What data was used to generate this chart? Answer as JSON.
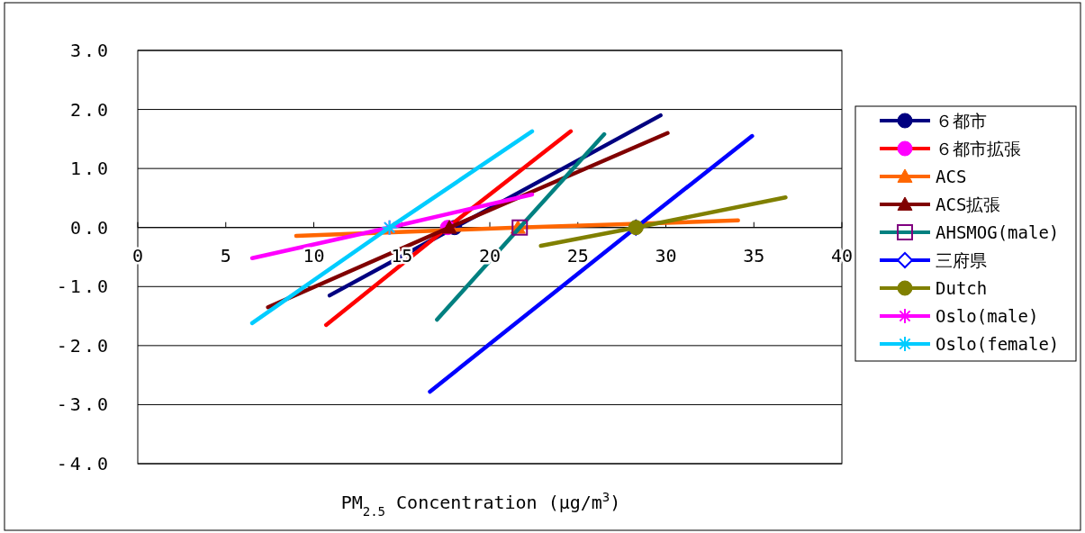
{
  "chart_data": {
    "type": "line",
    "xlabel": "PM$_{2.5}$ Concentration (µg/m$^{3}$)",
    "xlim": [
      0,
      40
    ],
    "xticks": [
      0,
      5,
      10,
      15,
      20,
      25,
      30,
      35,
      40
    ],
    "ylim": [
      -4,
      3
    ],
    "yticks": [
      {
        "value": -4,
        "label": "-4.0"
      },
      {
        "value": -3,
        "label": "-3.0"
      },
      {
        "value": -2,
        "label": "-2.0"
      },
      {
        "value": -1,
        "label": "-1.0"
      },
      {
        "value": 0,
        "label": "0.0"
      },
      {
        "value": 1,
        "label": "1.0"
      },
      {
        "value": 2,
        "label": "2.0"
      },
      {
        "value": 3,
        "label": "3.0"
      }
    ],
    "grid": "y",
    "legend": "right",
    "line_style": "solid",
    "series": [
      {
        "name": "６都市",
        "color": "#000080",
        "x": [
          10.9,
          18.0,
          29.7
        ],
        "values": [
          -1.15,
          0,
          1.9
        ]
      },
      {
        "type": "scatter",
        "marker": "circle",
        "color": "#000080",
        "x": [
          18.0
        ],
        "values": [
          0
        ]
      },
      {
        "name": "６都市拡張",
        "color": "#ff0000",
        "x": [
          10.7,
          17.6,
          24.6
        ],
        "values": [
          -1.65,
          0,
          1.63
        ]
      },
      {
        "type": "scatter",
        "marker": "circle",
        "color": "#ff00ff",
        "x": [
          17.6
        ],
        "values": [
          0
        ]
      },
      {
        "name": "ACS",
        "color": "#ff6600",
        "x": [
          9.0,
          21.6,
          34.1
        ],
        "values": [
          -0.14,
          0,
          0.12
        ]
      },
      {
        "type": "scatter",
        "marker": "triangle",
        "color": "#ff6600",
        "x": [
          21.6
        ],
        "values": [
          0
        ]
      },
      {
        "name": "ACS拡張",
        "color": "#800000",
        "x": [
          7.4,
          17.7,
          30.1
        ],
        "values": [
          -1.35,
          0,
          1.6
        ]
      },
      {
        "type": "scatter",
        "marker": "triangle",
        "color": "#800000",
        "x": [
          17.7
        ],
        "values": [
          0
        ]
      },
      {
        "name": "AHSMOG(male)",
        "color": "#008080",
        "x": [
          17.0,
          21.7,
          26.5
        ],
        "values": [
          -1.56,
          0,
          1.58
        ]
      },
      {
        "type": "scatter",
        "marker": "square",
        "color": "#800080",
        "x": [
          21.7
        ],
        "values": [
          0
        ]
      },
      {
        "name": "三府県",
        "color": "#0000ff",
        "x": [
          16.6,
          28.3,
          34.9
        ],
        "values": [
          -2.78,
          0,
          1.55
        ]
      },
      {
        "type": "scatter",
        "marker": "diamond",
        "color": "#0000ff",
        "x": [
          28.3
        ],
        "values": [
          0
        ]
      },
      {
        "name": "Dutch",
        "color": "#808000",
        "x": [
          22.9,
          28.3,
          36.8
        ],
        "values": [
          -0.31,
          0,
          0.51
        ]
      },
      {
        "type": "scatter",
        "marker": "circle",
        "color": "#808000",
        "x": [
          28.3
        ],
        "values": [
          0
        ]
      },
      {
        "name": "Oslo(male)",
        "color": "#ff00ff",
        "x": [
          6.5,
          14.3,
          22.4
        ],
        "values": [
          -0.52,
          0,
          0.56
        ]
      },
      {
        "type": "scatter",
        "marker": "cross",
        "color": "#ff00ff",
        "x": [
          14.3
        ],
        "values": [
          0
        ]
      },
      {
        "name": "Oslo(female)",
        "color": "#00ccff",
        "x": [
          6.5,
          14.3,
          22.4
        ],
        "values": [
          -1.62,
          0,
          1.63
        ]
      },
      {
        "type": "scatter",
        "marker": "cross",
        "color": "#00ccff",
        "x": [
          14.3
        ],
        "values": [
          0
        ]
      }
    ]
  }
}
